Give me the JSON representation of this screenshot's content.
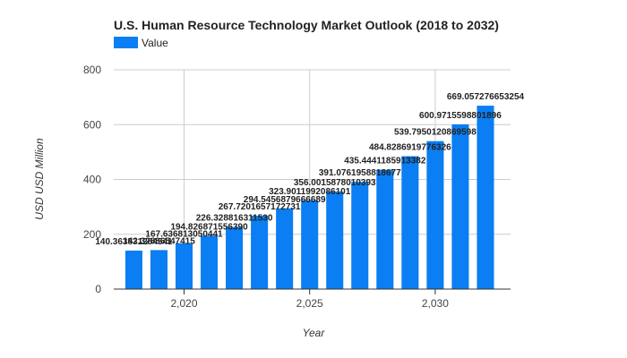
{
  "chart_data": {
    "type": "bar",
    "title": "U.S. Human Resource Technology Market Outlook (2018 to 2032)",
    "xlabel": "Year",
    "ylabel": "USD USD Million",
    "legend": {
      "position": "top-left",
      "entries": [
        "Value"
      ]
    },
    "series": [
      {
        "name": "Value",
        "color": "#0a7ef2",
        "x": [
          2018,
          2019,
          2020,
          2021,
          2022,
          2023,
          2024,
          2025,
          2026,
          2027,
          2028,
          2029,
          2030,
          2031,
          2032
        ],
        "values": [
          140.363531284541,
          142.32886547415,
          167.636813050441,
          194.82687155639,
          226.32881631153,
          267.7201657172731,
          294.5456879666689,
          323.9011992086101,
          356.0015878010393,
          391.0761958818677,
          435.4441185913382,
          484.8286919776326,
          539.7950120869598,
          600.9715598801896,
          669.057276653254
        ],
        "data_labels": [
          "140.363531284541",
          "142.32886547415",
          "167.636813050441",
          "194.826871556390",
          "226.328816311530",
          "267.7201657172731",
          "294.5456879666689",
          "323.9011992086101",
          "356.0015878010393",
          "391.0761958818677",
          "435.4441185913382",
          "484.8286919776326",
          "539.7950120869598",
          "600.9715598801896",
          "669.057276653254"
        ]
      }
    ],
    "x_ticks": [
      2020,
      2025,
      2030
    ],
    "x_tick_labels": [
      "2,020",
      "2,025",
      "2,030"
    ],
    "xlim": [
      2017.2,
      2033.0
    ],
    "ylim": [
      0,
      800
    ],
    "y_ticks": [
      0,
      200,
      400,
      600,
      800
    ],
    "y_tick_labels": [
      "0",
      "200",
      "400",
      "600",
      "800"
    ],
    "grid": true
  }
}
